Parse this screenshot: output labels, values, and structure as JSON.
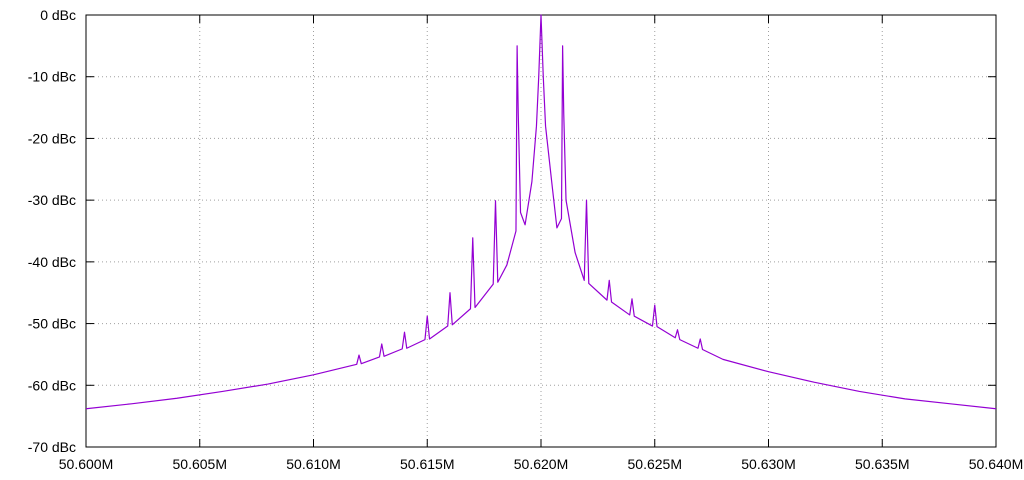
{
  "chart_data": {
    "type": "line",
    "color": "#9400d3",
    "grid": true,
    "xlim": [
      50.6,
      50.64
    ],
    "xticks": [
      {
        "value": 50.6,
        "label": "50.600M"
      },
      {
        "value": 50.605,
        "label": "50.605M"
      },
      {
        "value": 50.61,
        "label": "50.610M"
      },
      {
        "value": 50.615,
        "label": "50.615M"
      },
      {
        "value": 50.62,
        "label": "50.620M"
      },
      {
        "value": 50.625,
        "label": "50.625M"
      },
      {
        "value": 50.63,
        "label": "50.630M"
      },
      {
        "value": 50.635,
        "label": "50.635M"
      },
      {
        "value": 50.64,
        "label": "50.640M"
      }
    ],
    "ylim": [
      -70,
      0
    ],
    "yticks": [
      {
        "value": 0,
        "label": "0 dBc"
      },
      {
        "value": -10,
        "label": "-10 dBc"
      },
      {
        "value": -20,
        "label": "-20 dBc"
      },
      {
        "value": -30,
        "label": "-30 dBc"
      },
      {
        "value": -40,
        "label": "-40 dBc"
      },
      {
        "value": -50,
        "label": "-50 dBc"
      },
      {
        "value": -60,
        "label": "-60 dBc"
      },
      {
        "value": -70,
        "label": "-70 dBc"
      }
    ],
    "x": [
      50.6,
      50.602,
      50.604,
      50.606,
      50.608,
      50.61,
      50.6119,
      50.612,
      50.6121,
      50.6129,
      50.613,
      50.6131,
      50.6139,
      50.614,
      50.6141,
      50.6149,
      50.615,
      50.6151,
      50.6159,
      50.616,
      50.6161,
      50.6169,
      50.617,
      50.6171,
      50.6179,
      50.618,
      50.6181,
      50.6185,
      50.6189,
      50.61895,
      50.619,
      50.6191,
      50.6193,
      50.6196,
      50.6198,
      50.6199,
      50.62,
      50.6201,
      50.6202,
      50.6205,
      50.6207,
      50.6209,
      50.62095,
      50.621,
      50.6211,
      50.6215,
      50.6219,
      50.622,
      50.6221,
      50.6229,
      50.623,
      50.6231,
      50.6239,
      50.624,
      50.6241,
      50.6249,
      50.625,
      50.6251,
      50.6259,
      50.626,
      50.6261,
      50.6269,
      50.627,
      50.6271,
      50.628,
      50.63,
      50.632,
      50.634,
      50.636,
      50.638,
      50.64
    ],
    "values": [
      -63.8,
      -63.0,
      -62.1,
      -61.0,
      -59.8,
      -58.3,
      -56.6,
      -55.1,
      -56.5,
      -55.4,
      -53.3,
      -55.3,
      -54.1,
      -51.4,
      -54.0,
      -52.6,
      -48.8,
      -52.5,
      -50.4,
      -45.0,
      -50.2,
      -47.6,
      -36.1,
      -47.4,
      -43.6,
      -30.1,
      -43.3,
      -40.5,
      -35.0,
      -5.0,
      -16.0,
      -32.0,
      -34.0,
      -27.0,
      -18.0,
      -10.0,
      0,
      -10.0,
      -18.0,
      -28.0,
      -34.5,
      -33.0,
      -5.0,
      -16.0,
      -30.0,
      -38.5,
      -43.0,
      -30.0,
      -43.5,
      -46.2,
      -43.0,
      -46.5,
      -48.6,
      -46.0,
      -48.8,
      -50.4,
      -47.0,
      -50.5,
      -52.3,
      -51.0,
      -52.6,
      -54.0,
      -52.5,
      -54.2,
      -55.8,
      -57.8,
      -59.5,
      -61.0,
      -62.2,
      -63.0,
      -63.8
    ]
  }
}
